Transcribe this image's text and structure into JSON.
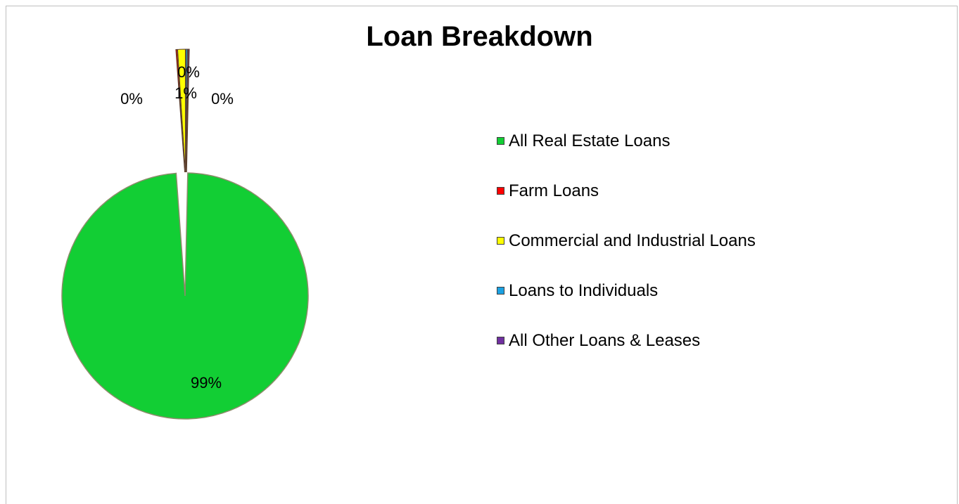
{
  "chart_data": {
    "type": "pie",
    "title": "Loan Breakdown",
    "legend_position": "right",
    "slices": [
      {
        "name": "All Real Estate Loans",
        "value": 98.5,
        "label": "99%",
        "color": "#12CE34"
      },
      {
        "name": "Farm Loans",
        "value": 0.15,
        "label": "0%",
        "color": "#FF0000"
      },
      {
        "name": "Commercial and Industrial Loans",
        "value": 1.0,
        "label": "1%",
        "color": "#FFFF00"
      },
      {
        "name": "Loans to Individuals",
        "value": 0.2,
        "label": "0%",
        "color": "#1BA1E2"
      },
      {
        "name": "All Other Loans & Leases",
        "value": 0.15,
        "label": "0%",
        "color": "#7030A0"
      }
    ]
  }
}
